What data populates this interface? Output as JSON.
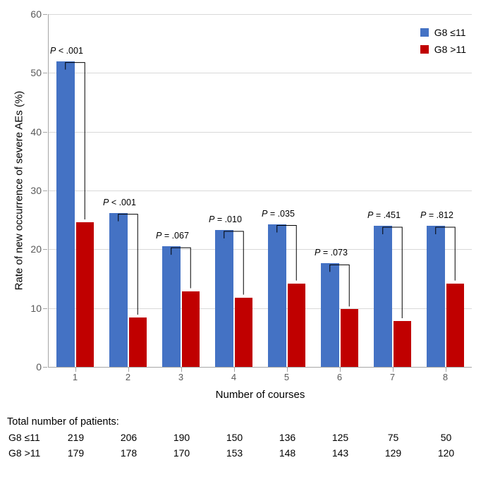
{
  "chart": {
    "type": "bar",
    "ylabel": "Rate of new occurrence of severe AEs (%)",
    "xlabel": "Number of courses",
    "ylim": [
      0,
      60
    ],
    "ytick_step": 10,
    "background_color": "#ffffff",
    "grid_color": "#d9d9d9",
    "axis_color": "#a6a6a6",
    "categories": [
      "1",
      "2",
      "3",
      "4",
      "5",
      "6",
      "7",
      "8"
    ],
    "series": [
      {
        "name": "G8 ≤11",
        "color": "#4472c4",
        "values": [
          52.0,
          26.2,
          20.5,
          23.3,
          24.3,
          17.6,
          24.0,
          24.0
        ]
      },
      {
        "name": "G8 >11",
        "color": "#c00000",
        "values": [
          24.6,
          8.4,
          12.9,
          11.8,
          14.2,
          9.8,
          7.8,
          14.2
        ]
      }
    ],
    "pvalues": [
      "P < .001",
      "P < .001",
      "P = .067",
      "P = .010",
      "P = .035",
      "P = .073",
      "P = .451",
      "P = .812"
    ],
    "bar_width": 0.34
  },
  "table": {
    "title": "Total number of patients:",
    "rows": [
      {
        "label": "G8 ≤11",
        "cells": [
          "219",
          "206",
          "190",
          "150",
          "136",
          "125",
          "75",
          "50"
        ]
      },
      {
        "label": "G8 >11",
        "cells": [
          "179",
          "178",
          "170",
          "153",
          "148",
          "143",
          "129",
          "120"
        ]
      }
    ]
  }
}
